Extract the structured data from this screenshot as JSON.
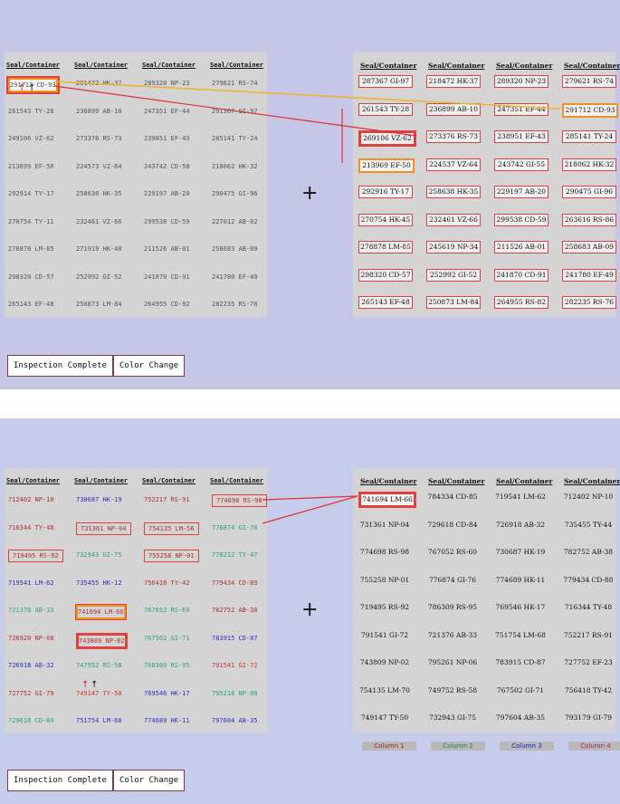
{
  "headers": [
    "Seal/Container",
    "Seal/Container",
    "Seal/Container",
    "Seal/Container"
  ],
  "buttons": {
    "inspection": "Inspection Complete",
    "color": "Color Change"
  },
  "cross": "+",
  "pins": [
    "↑",
    "↑"
  ],
  "top": {
    "left_rows": [
      [
        "291712 CD-93",
        "281472 HK-37",
        "289320 NP-23",
        "279621 RS-74"
      ],
      [
        "261543 TY-28",
        "236899 AB-10",
        "247351 EF-44",
        "291367 GI-97"
      ],
      [
        "249106 VZ-62",
        "273376 RS-73",
        "239851 EF-43",
        "285141 TY-24"
      ],
      [
        "213699 EF-50",
        "224573 VZ-64",
        "243742 CD-58",
        "218062 HK-32"
      ],
      [
        "292914 TY-17",
        "258638 HK-35",
        "229197 AB-20",
        "290475 GI-96"
      ],
      [
        "270754 TY-11",
        "232461 VZ-66",
        "299538 CD-59",
        "227012 AB-02"
      ],
      [
        "278878 LM-85",
        "271919 HK-40",
        "211526 AB-01",
        "258683 AB-09"
      ],
      [
        "298320 CD-57",
        "252992 GI-52",
        "241870 CD-91",
        "241780 EF-49"
      ],
      [
        "265143 EF-48",
        "250873 LM-84",
        "264955 CD-92",
        "282235 RS-76"
      ]
    ],
    "right_rows": [
      [
        "287367 GI-97",
        "218472 HK-37",
        "289320 NP-23",
        "279621 RS-74"
      ],
      [
        "261543 TY-28",
        "236899 AB-10",
        "247351 EF-44",
        "291712 CD-93"
      ],
      [
        "269106 VZ-62",
        "273376 RS-73",
        "238951 EF-43",
        "285141 TY-24"
      ],
      [
        "213969 EF-50",
        "224537 VZ-64",
        "243742 GI-55",
        "218062 HK-32"
      ],
      [
        "292916 TY-17",
        "258638 HK-35",
        "229197 AB-20",
        "290475 GI-96"
      ],
      [
        "270754 HK-45",
        "232461 VZ-66",
        "299538 CD-59",
        "263616 RS-86"
      ],
      [
        "278878 LM-85",
        "245619 NP-34",
        "211526 AB-01",
        "258683 AB-09"
      ],
      [
        "298320 CD-57",
        "252992 GI-52",
        "241870 CD-91",
        "241780 EF-49"
      ],
      [
        "265143 EF-48",
        "250873 LM-84",
        "264955 RS-82",
        "282235 RS-76"
      ]
    ]
  },
  "bottom": {
    "left_rows": [
      [
        "712402 NP-10",
        "730687 HK-19",
        "752217 RS-91",
        "774698 RS-98"
      ],
      [
        "716344 TY-48",
        "731361 NP-04",
        "754135 LM-56",
        "776874 GI-76"
      ],
      [
        "719495 RS-92",
        "732943 GI-75",
        "755258 NP-01",
        "778212 TY-47"
      ],
      [
        "719541 LM-62",
        "735455 HK-12",
        "756418 TY-42",
        "779434 CD-89"
      ],
      [
        "721376 AB-33",
        "741694 LM-66",
        "767652 RS-60",
        "782752 AB-38"
      ],
      [
        "726920 NP-08",
        "743809 NP-02",
        "767502 GI-71",
        "783915 CD-87"
      ],
      [
        "726918 AB-32",
        "747952 RS-58",
        "768309 RS-95",
        "791541 GI-72"
      ],
      [
        "727752 GI-79",
        "749147 TY-50",
        "769546 HK-17",
        "795216 NP-06"
      ],
      [
        "729618 CD-84",
        "751754 LM-68",
        "774689 HK-11",
        "797604 AB-35"
      ]
    ],
    "left_colors": [
      [
        "#b03030",
        "#3030c0",
        "#b03030",
        "#b03030"
      ],
      [
        "#b03030",
        "#b03030",
        "#b03030",
        "#30a080"
      ],
      [
        "#b03030",
        "#30a080",
        "#b03030",
        "#30a080"
      ],
      [
        "#3030c0",
        "#3030c0",
        "#b03030",
        "#b03030"
      ],
      [
        "#30a080",
        "#b03030",
        "#30a080",
        "#b03030"
      ],
      [
        "#b03030",
        "#b03030",
        "#30a080",
        "#3030c0"
      ],
      [
        "#3030c0",
        "#30a080",
        "#30a080",
        "#e03030"
      ],
      [
        "#b03030",
        "#e03030",
        "#3030c0",
        "#30a080"
      ],
      [
        "#30a080",
        "#3030c0",
        "#3030c0",
        "#3030c0"
      ]
    ],
    "right_rows": [
      [
        "741694 LM-66",
        "784334 CD-85",
        "719541 LM-62",
        "712402 NP-10"
      ],
      [
        "731361 NP-04",
        "729618 CD-84",
        "726918 AB-32",
        "735455 TY-44"
      ],
      [
        "774698 RS-98",
        "767052 RS-60",
        "730687 HK-19",
        "782752 AB-38"
      ],
      [
        "755258 NP-01",
        "776874 GI-76",
        "774689 HK-11",
        "779434 CD-88"
      ],
      [
        "719495 RS-92",
        "786309 RS-95",
        "769546 HK-17",
        "716344 TY-48"
      ],
      [
        "791541 GI-72",
        "721376 AB-33",
        "751754 LM-68",
        "752217 RS-91"
      ],
      [
        "743809 NP-02",
        "795261 NP-06",
        "783915 CD-87",
        "727752 EF-23"
      ],
      [
        "754135 LM-70",
        "749752 RS-58",
        "767502 GI-71",
        "756418 TY-42"
      ],
      [
        "749147 TY-50",
        "732943 GI-75",
        "797604 AB-35",
        "793179 GI-79"
      ]
    ],
    "legend": [
      "Column 1",
      "Column 2",
      "Column 3",
      "Column 4"
    ],
    "legend_colors": [
      "#a02020",
      "#208050",
      "#2020c0",
      "#a02070"
    ]
  }
}
